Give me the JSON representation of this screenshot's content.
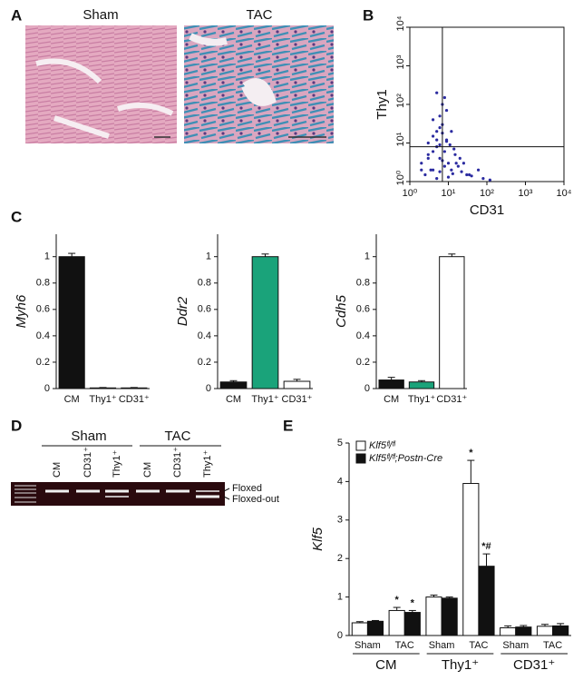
{
  "panel_labels": [
    "A",
    "B",
    "C",
    "D",
    "E"
  ],
  "histology": {
    "titles": [
      "Sham",
      "TAC"
    ]
  },
  "gel": {
    "groups": [
      "Sham",
      "TAC"
    ],
    "lanes": [
      "CM",
      "CD31⁺",
      "Thy1⁺",
      "CM",
      "CD31⁺",
      "Thy1⁺"
    ],
    "bands": [
      "Floxed",
      "Floxed-out"
    ]
  },
  "chart_data": [
    {
      "type": "scatter",
      "xlabel": "CD31",
      "ylabel": "Thy1",
      "xscale": "log",
      "yscale": "log",
      "xlim": [
        1,
        10000
      ],
      "ylim": [
        1,
        10000
      ],
      "xticks": [
        {
          "value": 1,
          "label": "10⁰"
        },
        {
          "value": 10,
          "label": "10¹"
        },
        {
          "value": 100,
          "label": "10²"
        },
        {
          "value": 1000,
          "label": "10³"
        },
        {
          "value": 10000,
          "label": "10⁴"
        }
      ],
      "yticks": [
        {
          "value": 1,
          "label": "10⁰"
        },
        {
          "value": 10,
          "label": "10¹"
        },
        {
          "value": 100,
          "label": "10²"
        },
        {
          "value": 1000,
          "label": "10³"
        },
        {
          "value": 10000,
          "label": "10⁴"
        }
      ],
      "color": "#2b2ba0",
      "gate": {
        "x": 7,
        "y": 8
      },
      "x": [
        2,
        3,
        4,
        5,
        6,
        8,
        10,
        12,
        15,
        20,
        3,
        4,
        5,
        7,
        9,
        11,
        14,
        18,
        25,
        30,
        2.5,
        3.5,
        6,
        7,
        8,
        9,
        5,
        4,
        6,
        7,
        5,
        6,
        8,
        4,
        7,
        10,
        13,
        40,
        60,
        80,
        3,
        5,
        6,
        9,
        12,
        2,
        16,
        22,
        35,
        120
      ],
      "y": [
        3,
        5,
        2,
        8,
        4,
        6,
        3,
        2,
        5,
        4,
        10,
        15,
        20,
        30,
        12,
        9,
        7,
        2.5,
        3,
        1.5,
        1.5,
        2,
        50,
        100,
        150,
        70,
        200,
        40,
        25,
        18,
        1.2,
        1.8,
        2.5,
        6,
        3.5,
        1.3,
        1.6,
        1.4,
        2,
        1.2,
        4,
        12,
        9,
        11,
        20,
        2,
        3,
        1.8,
        1.5,
        1.1
      ]
    },
    {
      "type": "bar",
      "ylabel": "Myh6",
      "categories": [
        "CM",
        "Thy1⁺",
        "CD31⁺"
      ],
      "values": [
        1,
        0.005,
        0.005
      ],
      "errors": [
        0.025,
        0.003,
        0.003
      ],
      "colors": [
        "#111111",
        "#111111",
        "#111111"
      ],
      "ylim": [
        0,
        1.17
      ],
      "yticks": [
        0,
        0.2,
        0.4,
        0.6,
        0.8,
        1
      ]
    },
    {
      "type": "bar",
      "ylabel": "Ddr2",
      "categories": [
        "CM",
        "Thy1⁺",
        "CD31⁺"
      ],
      "values": [
        0.05,
        1,
        0.055
      ],
      "errors": [
        0.01,
        0.02,
        0.015
      ],
      "colors": [
        "#111111",
        "#1aa37a",
        "#ffffff"
      ],
      "ylim": [
        0,
        1.17
      ],
      "yticks": [
        0,
        0.2,
        0.4,
        0.6,
        0.8,
        1
      ]
    },
    {
      "type": "bar",
      "ylabel": "Cdh5",
      "categories": [
        "CM",
        "Thy1⁺",
        "CD31⁺"
      ],
      "values": [
        0.065,
        0.05,
        1
      ],
      "errors": [
        0.02,
        0.01,
        0.02
      ],
      "colors": [
        "#111111",
        "#1aa37a",
        "#ffffff"
      ],
      "ylim": [
        0,
        1.17
      ],
      "yticks": [
        0,
        0.2,
        0.4,
        0.6,
        0.8,
        1
      ]
    },
    {
      "type": "grouped_bar",
      "ylabel": "Klf5",
      "groups": [
        "CM",
        "Thy1⁺",
        "CD31⁺"
      ],
      "categories": [
        "Sham",
        "TAC",
        "Sham",
        "TAC",
        "Sham",
        "TAC"
      ],
      "series": [
        {
          "name": "Klf5ᶠˡ/ᶠˡ",
          "color": "#ffffff",
          "values": [
            0.33,
            0.65,
            1.0,
            3.95,
            0.2,
            0.24
          ],
          "errors": [
            0.03,
            0.08,
            0.05,
            0.6,
            0.05,
            0.05
          ],
          "annotations": [
            null,
            "*",
            null,
            "*",
            null,
            null
          ]
        },
        {
          "name": "Klf5ᶠˡ/ᶠˡ;Postn-Cre",
          "color": "#111111",
          "values": [
            0.37,
            0.6,
            0.97,
            1.8,
            0.22,
            0.25
          ],
          "errors": [
            0.02,
            0.05,
            0.03,
            0.32,
            0.04,
            0.06
          ],
          "annotations": [
            null,
            "*",
            null,
            "*#",
            null,
            null
          ]
        }
      ],
      "ylim": [
        0,
        5
      ],
      "yticks": [
        0,
        1,
        2,
        3,
        4,
        5
      ]
    }
  ]
}
